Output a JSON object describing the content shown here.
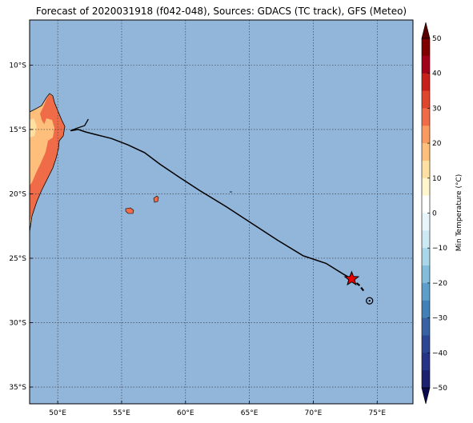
{
  "title": "Forecast of 2020031918 (f042-048), Sources: GDACS (TC track), GFS (Meteo)",
  "map": {
    "lon_range": [
      47.8,
      77.8
    ],
    "lat_range": [
      -36.3,
      -6.5
    ],
    "lon_ticks": [
      {
        "value": 50,
        "label": "50°E"
      },
      {
        "value": 55,
        "label": "55°E"
      },
      {
        "value": 60,
        "label": "60°E"
      },
      {
        "value": 65,
        "label": "65°E"
      },
      {
        "value": 70,
        "label": "70°E"
      },
      {
        "value": 75,
        "label": "75°E"
      }
    ],
    "lat_ticks": [
      {
        "value": -10,
        "label": "10°S"
      },
      {
        "value": -15,
        "label": "15°S"
      },
      {
        "value": -20,
        "label": "20°S"
      },
      {
        "value": -25,
        "label": "25°S"
      },
      {
        "value": -30,
        "label": "30°S"
      },
      {
        "value": -35,
        "label": "35°S"
      }
    ],
    "grid": true,
    "ocean_color": "#92b5da",
    "track_color": "#000000",
    "track": [
      [
        51.0,
        -15.1
      ],
      [
        51.6,
        -15.0
      ],
      [
        52.2,
        -15.2
      ],
      [
        53.0,
        -15.4
      ],
      [
        54.2,
        -15.7
      ],
      [
        55.5,
        -16.2
      ],
      [
        56.8,
        -16.8
      ],
      [
        58.0,
        -17.7
      ],
      [
        59.5,
        -18.7
      ],
      [
        61.2,
        -19.8
      ],
      [
        63.2,
        -21.0
      ],
      [
        65.2,
        -22.3
      ],
      [
        67.2,
        -23.6
      ],
      [
        69.2,
        -24.8
      ],
      [
        71.0,
        -25.4
      ],
      [
        72.3,
        -26.2
      ],
      [
        73.0,
        -26.6
      ]
    ],
    "track_hook": [
      [
        51.0,
        -15.1
      ],
      [
        51.5,
        -14.9
      ],
      [
        52.1,
        -14.7
      ],
      [
        52.4,
        -14.2
      ]
    ],
    "track_forecast": [
      [
        73.0,
        -26.6
      ],
      [
        73.6,
        -27.1
      ],
      [
        74.0,
        -27.6
      ]
    ],
    "storm_current": {
      "lon": 73.0,
      "lat": -26.6,
      "marker": "star",
      "color": "#e60000"
    },
    "storm_forecast": {
      "lon": 74.4,
      "lat": -28.3,
      "marker": "circle-dot"
    }
  },
  "colorbar": {
    "label": "Min Temperature (°C)",
    "ticks": [
      "50",
      "40",
      "30",
      "20",
      "10",
      "0",
      "−10",
      "−20",
      "−30",
      "−40",
      "−50"
    ],
    "colors": [
      "#67001f",
      "#b2182b",
      "#d6604d",
      "#f4a582",
      "#fddbc7",
      "#ffffff",
      "#d1e5f0",
      "#92c5de",
      "#4393c3",
      "#2166ac",
      "#053061"
    ],
    "segments": [
      {
        "from": 50,
        "to": 45,
        "color": "#7f0000"
      },
      {
        "from": 45,
        "to": 40,
        "color": "#a3001b"
      },
      {
        "from": 40,
        "to": 35,
        "color": "#c7201a"
      },
      {
        "from": 35,
        "to": 30,
        "color": "#e0452e"
      },
      {
        "from": 30,
        "to": 25,
        "color": "#f06c48"
      },
      {
        "from": 25,
        "to": 20,
        "color": "#f99a60"
      },
      {
        "from": 20,
        "to": 15,
        "color": "#fdbf7b"
      },
      {
        "from": 15,
        "to": 10,
        "color": "#fee0a2"
      },
      {
        "from": 10,
        "to": 5,
        "color": "#fff5cf"
      },
      {
        "from": 5,
        "to": 0,
        "color": "#ffffff"
      },
      {
        "from": 0,
        "to": -5,
        "color": "#e8f6fb"
      },
      {
        "from": -5,
        "to": -10,
        "color": "#cde9f4"
      },
      {
        "from": -10,
        "to": -15,
        "color": "#aad6ea"
      },
      {
        "from": -15,
        "to": -20,
        "color": "#82bddc"
      },
      {
        "from": -20,
        "to": -25,
        "color": "#5d9fca"
      },
      {
        "from": -25,
        "to": -30,
        "color": "#4281b8"
      },
      {
        "from": -30,
        "to": -35,
        "color": "#3762a4"
      },
      {
        "from": -35,
        "to": -40,
        "color": "#2d4694"
      },
      {
        "from": -40,
        "to": -45,
        "color": "#263386"
      },
      {
        "from": -45,
        "to": -50,
        "color": "#1b2070"
      }
    ]
  }
}
